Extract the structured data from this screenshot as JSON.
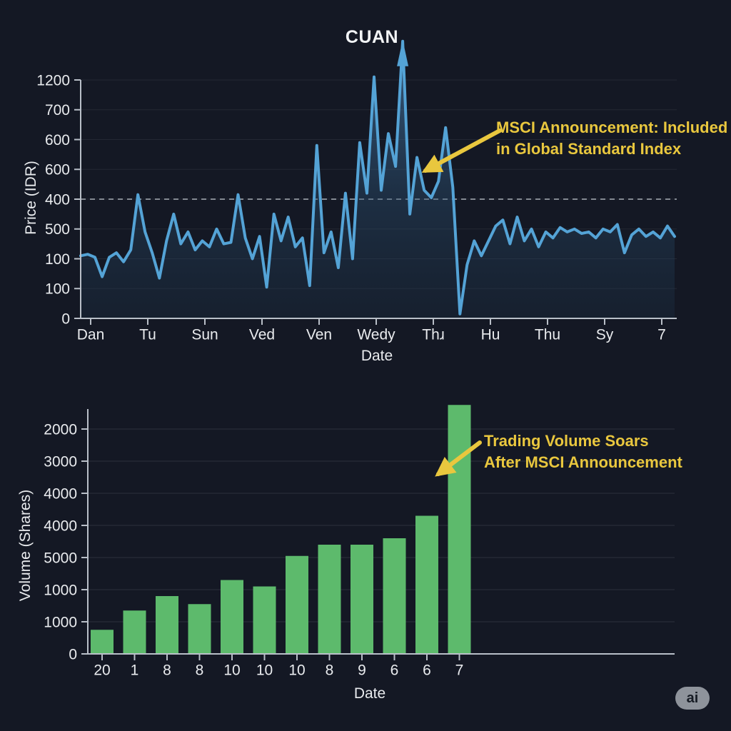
{
  "badge": {
    "label": "ai"
  },
  "colors": {
    "background": "#141824",
    "line_blue": "#54a3d6",
    "area_fill_top": "#5696cd",
    "bar_green": "#5dba6c",
    "annotation_gold": "#e9c73e",
    "axis_gray": "#b9bfc8",
    "text_white": "#e9ebee"
  },
  "chart_data": [
    {
      "type": "area",
      "title": "CUAN",
      "xlabel": "Date",
      "ylabel": "Price (IDR)",
      "x_tick_labels": [
        "Dan",
        "Tu",
        "Sun",
        "Ved",
        "Ven",
        "Wedy",
        "Thɹ",
        "Hu",
        "Thu",
        "Sy",
        "7"
      ],
      "y_tick_labels_bottom_to_top": [
        "0",
        "100",
        "100",
        "500",
        "400",
        "600",
        "600",
        "700",
        "1200"
      ],
      "grid": true,
      "legend": "none",
      "dashed_reference_line_at_tick": 4,
      "values_unit": "y-axis tick intervals above zero (tick spacing = 1.0)",
      "values": [
        2.1,
        2.15,
        2.05,
        1.4,
        2.05,
        2.2,
        1.9,
        2.3,
        4.15,
        2.9,
        2.2,
        1.35,
        2.6,
        3.5,
        2.5,
        2.9,
        2.3,
        2.6,
        2.4,
        3.0,
        2.5,
        2.55,
        4.15,
        2.7,
        2.0,
        2.75,
        1.05,
        3.5,
        2.6,
        3.4,
        2.4,
        2.7,
        1.1,
        5.8,
        2.2,
        2.9,
        1.7,
        4.2,
        2.0,
        5.9,
        4.2,
        8.1,
        4.3,
        6.2,
        5.1,
        9.3,
        3.5,
        5.4,
        4.3,
        4.05,
        4.6,
        6.4,
        4.4,
        0.15,
        1.8,
        2.6,
        2.1,
        2.6,
        3.1,
        3.3,
        2.5,
        3.4,
        2.6,
        3.0,
        2.4,
        2.9,
        2.7,
        3.05,
        2.9,
        3.0,
        2.85,
        2.9,
        2.7,
        3.0,
        2.9,
        3.15,
        2.2,
        2.8,
        3.0,
        2.75,
        2.9,
        2.7,
        3.1,
        2.75
      ],
      "arrow_spike_index": 45,
      "annotation": {
        "lines": [
          "MSCI Announcement: Included",
          "in Global Standard Index"
        ]
      }
    },
    {
      "type": "bar",
      "title": "",
      "xlabel": "Date",
      "ylabel": "Volume (Shares)",
      "categories": [
        "20",
        "1",
        "8",
        "8",
        "10",
        "10",
        "10",
        "8",
        "9",
        "6",
        "6",
        "7"
      ],
      "y_tick_labels_bottom_to_top": [
        "0",
        "1000",
        "1000",
        "5000",
        "4000",
        "4000",
        "3000",
        "2000"
      ],
      "grid": true,
      "legend": "none",
      "values_unit": "shares (1000 units per y-axis tick interval)",
      "values": [
        750,
        1350,
        1800,
        1550,
        2300,
        2100,
        3050,
        3400,
        3400,
        3600,
        4300,
        7750
      ],
      "annotation": {
        "lines": [
          "Trading Volume Soars",
          "After MSCI Announcement"
        ]
      }
    }
  ]
}
